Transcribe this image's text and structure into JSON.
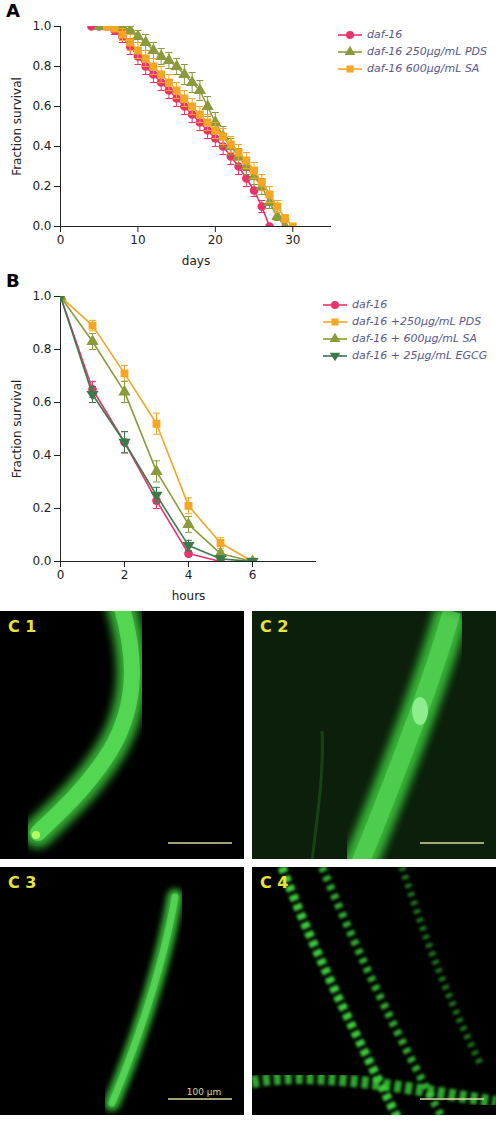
{
  "chart_data": [
    {
      "type": "line",
      "title": "A",
      "x_label": "days",
      "y_label": "Fraction survival",
      "x": [
        4,
        5,
        6,
        7,
        8,
        9,
        10,
        11,
        12,
        13,
        14,
        15,
        16,
        17,
        18,
        19,
        20,
        21,
        22,
        23,
        24,
        25,
        26,
        27,
        28,
        29,
        30
      ],
      "xlim": [
        0,
        35
      ],
      "xticks": [
        0,
        10,
        20,
        30
      ],
      "ylim": [
        0,
        1
      ],
      "yticks": [
        {
          "value": 0,
          "label": "0.0"
        },
        0.2,
        0.4,
        0.6,
        0.8,
        {
          "value": 1,
          "label": "1.0"
        }
      ],
      "legend": "top-right",
      "series": [
        {
          "name": "daf-16",
          "color": "#e8336b",
          "marker": "circle",
          "values": [
            1,
            1,
            1,
            0.98,
            0.95,
            0.9,
            0.85,
            0.8,
            0.76,
            0.72,
            0.68,
            0.64,
            0.6,
            0.56,
            0.52,
            0.48,
            0.44,
            0.4,
            0.35,
            0.3,
            0.24,
            0.18,
            0.1,
            0,
            null,
            null,
            null
          ],
          "errors": [
            0,
            0,
            0,
            0.02,
            0.03,
            0.04,
            0.04,
            0.04,
            0.04,
            0.04,
            0.04,
            0.04,
            0.04,
            0.04,
            0.04,
            0.04,
            0.04,
            0.04,
            0.04,
            0.04,
            0.04,
            0.03,
            0.03,
            0,
            null,
            null,
            null
          ]
        },
        {
          "name": "daf-16 250µg/mL PDS",
          "color": "#8c9a3c",
          "marker": "triangle",
          "values": [
            null,
            1,
            1,
            1,
            1,
            0.98,
            0.95,
            0.92,
            0.88,
            0.85,
            0.83,
            0.8,
            0.76,
            0.72,
            0.68,
            0.6,
            0.52,
            0.45,
            0.4,
            0.35,
            0.3,
            0.25,
            0.2,
            0.12,
            0.05,
            0,
            null
          ],
          "errors": [
            null,
            0,
            0,
            0,
            0,
            0.02,
            0.03,
            0.04,
            0.04,
            0.04,
            0.04,
            0.04,
            0.05,
            0.05,
            0.05,
            0.05,
            0.05,
            0.05,
            0.04,
            0.04,
            0.04,
            0.04,
            0.04,
            0.03,
            0.02,
            0,
            null
          ]
        },
        {
          "name": "daf-16 600µg/mL SA",
          "color": "#f5a623",
          "marker": "square",
          "values": [
            null,
            null,
            1,
            0.99,
            0.96,
            0.92,
            0.88,
            0.84,
            0.8,
            0.76,
            0.72,
            0.68,
            0.64,
            0.6,
            0.56,
            0.52,
            0.48,
            0.45,
            0.41,
            0.37,
            0.33,
            0.28,
            0.22,
            0.16,
            0.1,
            0.04,
            0
          ],
          "errors": [
            null,
            null,
            0,
            0.01,
            0.03,
            0.04,
            0.04,
            0.04,
            0.04,
            0.04,
            0.04,
            0.04,
            0.04,
            0.04,
            0.04,
            0.04,
            0.04,
            0.04,
            0.04,
            0.04,
            0.04,
            0.04,
            0.04,
            0.04,
            0.03,
            0.02,
            0
          ]
        }
      ]
    },
    {
      "type": "line",
      "title": "B",
      "x_label": "hours",
      "y_label": "Fraction survival",
      "x": [
        0,
        1,
        2,
        3,
        4,
        5,
        6
      ],
      "xlim": [
        0,
        8
      ],
      "xticks": [
        0,
        2,
        4,
        6
      ],
      "ylim": [
        0,
        1
      ],
      "yticks": [
        {
          "value": 0,
          "label": "0.0"
        },
        0.2,
        0.4,
        0.6,
        0.8,
        {
          "value": 1,
          "label": "1.0"
        }
      ],
      "legend": "top-right",
      "series": [
        {
          "name": "daf-16",
          "color": "#e8336b",
          "marker": "circle",
          "values": [
            1,
            0.65,
            0.45,
            0.23,
            0.03,
            0,
            null
          ],
          "errors": [
            0,
            0.03,
            0.04,
            0.03,
            0.01,
            0,
            null
          ]
        },
        {
          "name": "daf-16 +250µg/mL PDS",
          "color": "#f5a623",
          "marker": "square",
          "values": [
            1,
            0.89,
            0.71,
            0.52,
            0.21,
            0.07,
            0
          ],
          "errors": [
            0,
            0.02,
            0.03,
            0.04,
            0.03,
            0.02,
            0
          ]
        },
        {
          "name": "daf-16 + 600µg/mL SA",
          "color": "#8c9a3c",
          "marker": "triangle",
          "values": [
            1,
            0.83,
            0.64,
            0.34,
            0.14,
            0.03,
            0
          ],
          "errors": [
            0,
            0.03,
            0.04,
            0.04,
            0.03,
            0.01,
            0
          ]
        },
        {
          "name": "daf-16 + 25µg/mL EGCG",
          "color": "#3d7a4a",
          "marker": "triangle-down",
          "values": [
            1,
            0.63,
            0.45,
            0.25,
            0.06,
            0.01,
            0
          ],
          "errors": [
            0,
            0.03,
            0.04,
            0.03,
            0.02,
            0.01,
            0
          ]
        }
      ]
    }
  ],
  "panels": [
    {
      "label": "C 1"
    },
    {
      "label": "C 2"
    },
    {
      "label": "C 3",
      "scale_bar": "100 µm"
    },
    {
      "label": "C 4"
    }
  ]
}
